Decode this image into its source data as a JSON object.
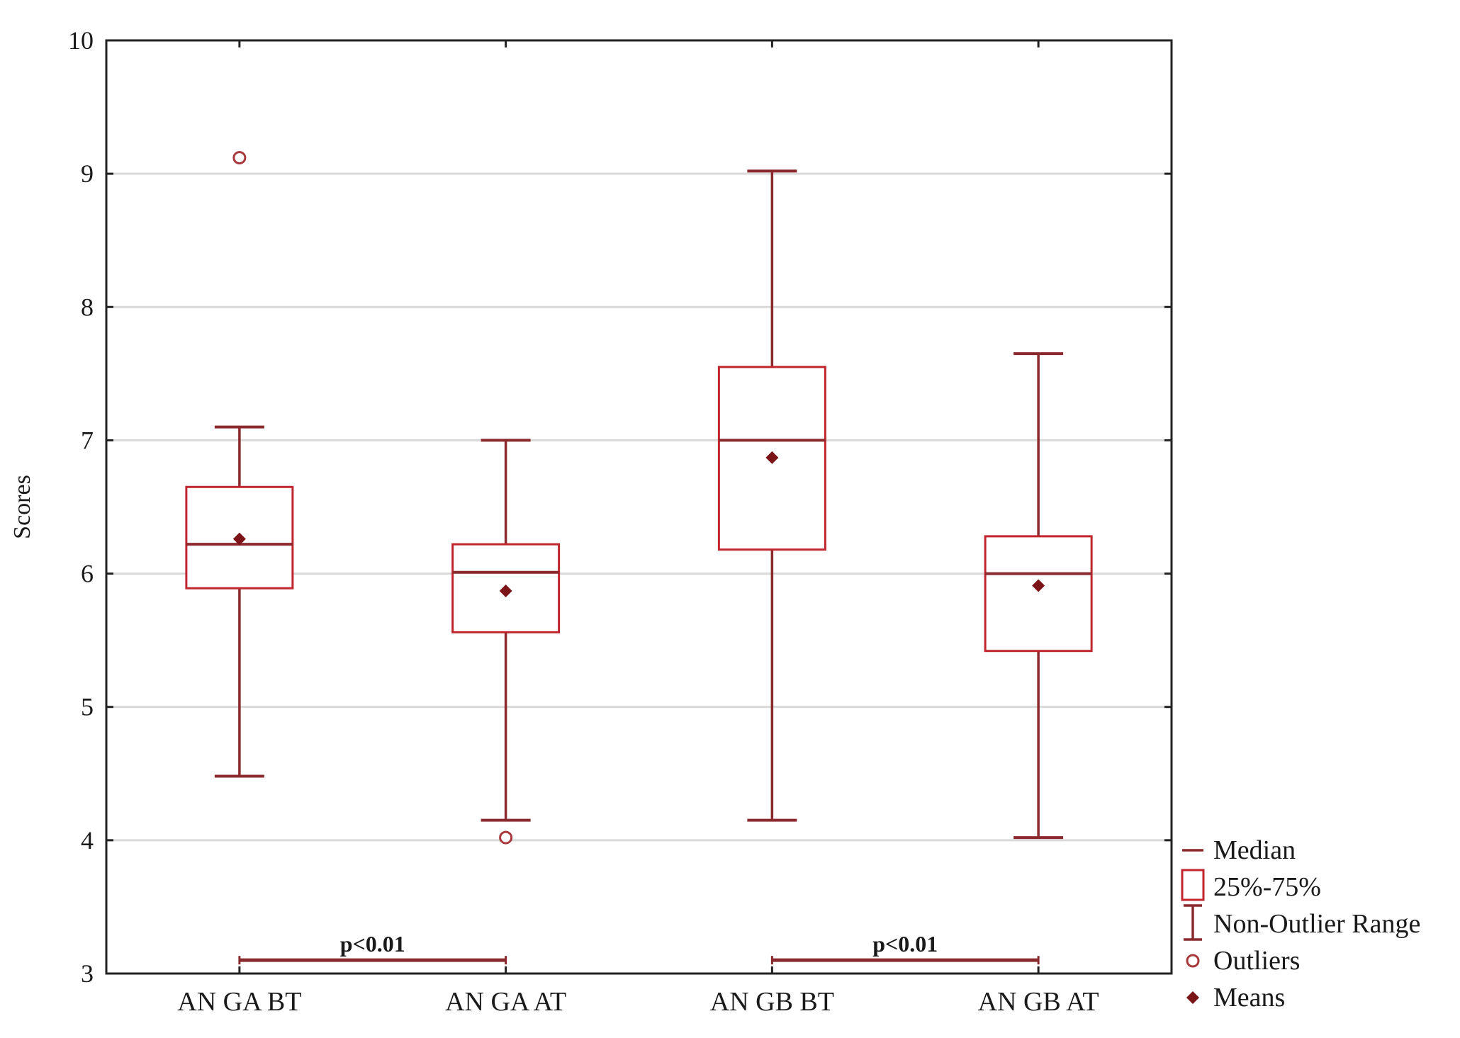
{
  "chart_data": {
    "type": "boxplot",
    "ylabel": "Scores",
    "xlabel": "",
    "ylim": [
      3,
      10
    ],
    "yticks": [
      3,
      4,
      5,
      6,
      7,
      8,
      9,
      10
    ],
    "grid": true,
    "legend_position": "bottom-right, outside plot",
    "categories": [
      "AN GA BT",
      "AN GA AT",
      "AN GB BT",
      "AN GB AT"
    ],
    "boxes": [
      {
        "label": "AN GA BT",
        "whisker_low": 4.48,
        "q1": 5.89,
        "median": 6.22,
        "q3": 6.65,
        "whisker_high": 7.1,
        "mean": 6.26,
        "outliers": [
          9.12
        ]
      },
      {
        "label": "AN GA AT",
        "whisker_low": 4.15,
        "q1": 5.56,
        "median": 6.01,
        "q3": 6.22,
        "whisker_high": 7.0,
        "mean": 5.87,
        "outliers": [
          4.02
        ]
      },
      {
        "label": "AN GB BT",
        "whisker_low": 4.15,
        "q1": 6.18,
        "median": 7.0,
        "q3": 7.55,
        "whisker_high": 9.02,
        "mean": 6.87,
        "outliers": []
      },
      {
        "label": "AN GB AT",
        "whisker_low": 4.02,
        "q1": 5.42,
        "median": 6.0,
        "q3": 6.28,
        "whisker_high": 7.65,
        "mean": 5.91,
        "outliers": []
      }
    ],
    "significance": [
      {
        "from": 0,
        "to": 1,
        "y": 3.1,
        "label": "p<0.01"
      },
      {
        "from": 2,
        "to": 3,
        "y": 3.1,
        "label": "p<0.01"
      }
    ],
    "legend": [
      "Median",
      "25%-75%",
      "Non-Outlier Range",
      "Outliers",
      "Means"
    ]
  },
  "colors": {
    "box": "#c0262e",
    "whisker": "#8b2a2e",
    "mean": "#7a1418",
    "outlier": "#a83a3e",
    "grid": "#d9d9d9",
    "axis": "#222222",
    "text": "#1a1a1a"
  }
}
